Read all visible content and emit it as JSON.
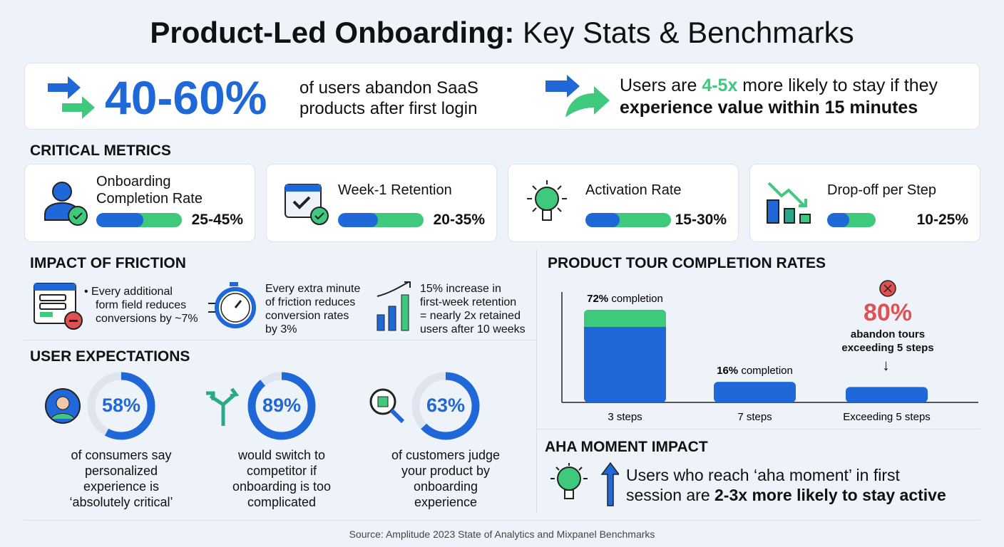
{
  "title": {
    "bold": "Product-Led Onboarding:",
    "rest": " Key Stats & Benchmarks"
  },
  "hero": {
    "stat": "40-60%",
    "stat_text_1": "of users abandon SaaS",
    "stat_text_2": "products after first login",
    "right_1a": "Users are ",
    "right_1b": "4-5x",
    "right_1c": " more likely to stay if they",
    "right_2": "experience value within 15 minutes"
  },
  "critical": {
    "heading": "CRITICAL METRICS",
    "cards": [
      {
        "label1": "Onboarding",
        "label2": "Completion Rate",
        "value": "25-45%",
        "icon": "user-check-icon",
        "fill": 0.55
      },
      {
        "label1": "Week-1 Retention",
        "label2": "",
        "value": "20-35%",
        "icon": "calendar-check-icon",
        "fill": 0.47
      },
      {
        "label1": "Activation Rate",
        "label2": "",
        "value": "15-30%",
        "icon": "lightbulb-icon",
        "fill": 0.4
      },
      {
        "label1": "Drop-off per Step",
        "label2": "",
        "value": "10-25%",
        "icon": "declining-chart-icon",
        "fill": 0.45
      }
    ]
  },
  "friction": {
    "heading": "IMPACT OF FRICTION",
    "item1": [
      "Every additional",
      "form field reduces",
      "conversions by ~7%"
    ],
    "item2": [
      "Every extra minute",
      "of friction reduces",
      "conversion rates",
      "by 3%"
    ],
    "item3": [
      "15% increase in",
      "first-week retention",
      "= nearly 2x retained",
      "users after 10 weeks"
    ]
  },
  "expectations": {
    "heading": "USER EXPECTATIONS",
    "items": [
      {
        "pct": "58%",
        "value": 58,
        "lines": [
          "of consumers say",
          "personalized",
          "experience is",
          "‘absolutely critical’"
        ]
      },
      {
        "pct": "89%",
        "value": 89,
        "lines": [
          "would switch to",
          "competitor if",
          "onboarding is too",
          "complicated"
        ]
      },
      {
        "pct": "63%",
        "value": 63,
        "lines": [
          "of customers judge",
          "your product by",
          "onboarding",
          "experience"
        ]
      }
    ]
  },
  "tour": {
    "heading": "PRODUCT TOUR COMPLETION RATES",
    "abandon_pct": "80%",
    "abandon_1": "abandon tours",
    "abandon_2": "exceeding 5 steps"
  },
  "chart_data": {
    "type": "bar",
    "title": "PRODUCT TOUR COMPLETION RATES",
    "categories": [
      "3 steps",
      "7 steps",
      "Exceeding 5 steps"
    ],
    "values": [
      72,
      16,
      12
    ],
    "data_labels": [
      {
        "bold": "72%",
        "rest": " completion"
      },
      {
        "bold": "16%",
        "rest": " completion"
      },
      null
    ],
    "ylim": [
      0,
      72
    ],
    "grid": false,
    "colors": {
      "bar": "#2068d8",
      "top": "#3ec97c"
    }
  },
  "aha": {
    "heading": "AHA MOMENT IMPACT",
    "line1": "Users who reach ‘aha moment’ in first",
    "line2a": "session are ",
    "line2b": "2-3x more likely to stay active"
  },
  "source": "Source: Amplitude 2023 State of Analytics and Mixpanel Benchmarks",
  "colors": {
    "blue": "#2068d8",
    "green": "#3ec97c",
    "red": "#e05252"
  }
}
